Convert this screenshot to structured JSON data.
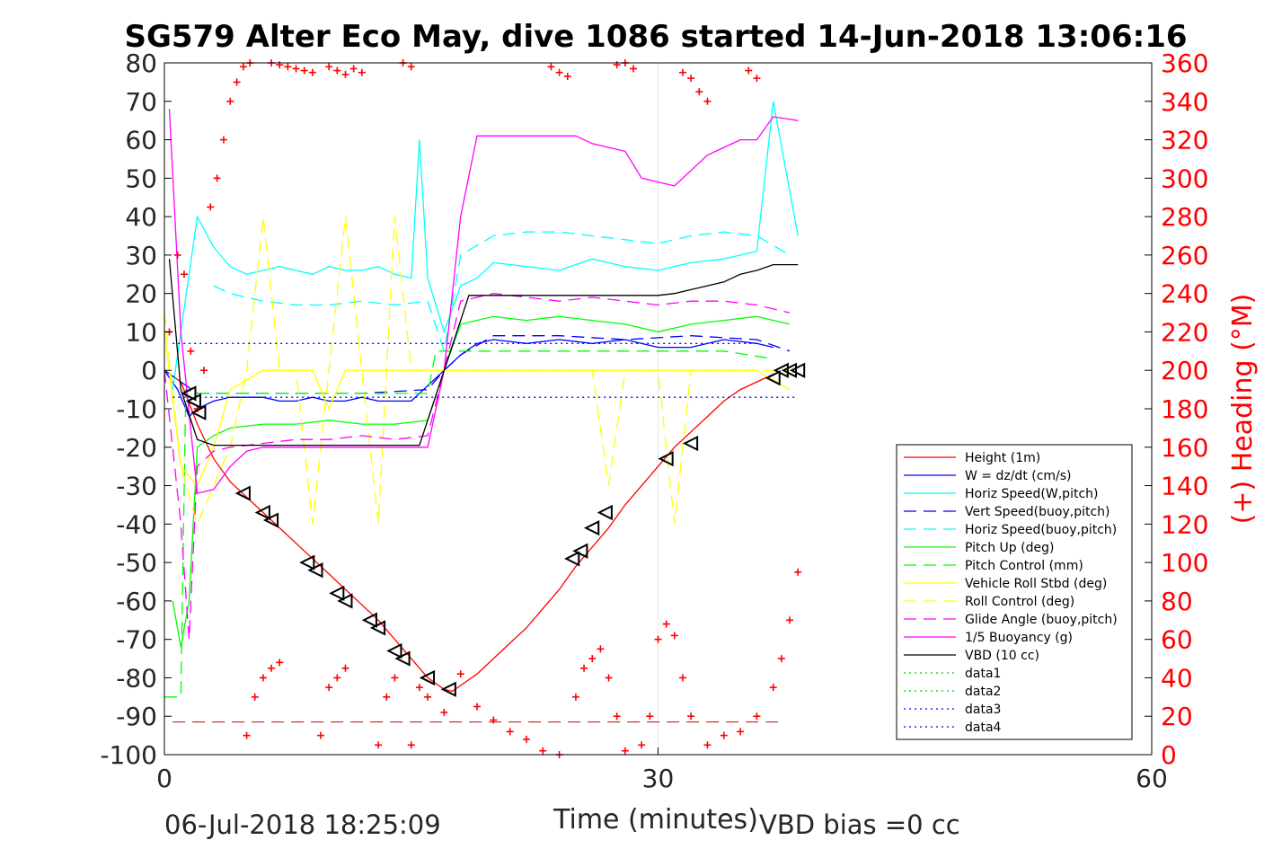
{
  "chart_data": {
    "type": "line",
    "title": "SG579 Alter Eco May, dive 1086 started 14-Jun-2018 13:06:16",
    "xlabel": "Time (minutes)",
    "ylabel_right": "(+) Heading (°M)",
    "footer_left": "06-Jul-2018 18:25:09",
    "footer_right": "VBD bias =0 cc",
    "xlim": [
      0,
      60
    ],
    "ylim": [
      -100,
      80
    ],
    "ylim_right": [
      0,
      360
    ],
    "x_ticks": [
      "0",
      "30",
      "60"
    ],
    "y_ticks": [
      "80",
      "70",
      "60",
      "50",
      "40",
      "30",
      "20",
      "10",
      "0",
      "-10",
      "-20",
      "-30",
      "-40",
      "-50",
      "-60",
      "-70",
      "-80",
      "-90",
      "-100"
    ],
    "y_ticks_right": [
      "360",
      "340",
      "320",
      "300",
      "280",
      "260",
      "240",
      "220",
      "200",
      "180",
      "160",
      "140",
      "120",
      "100",
      "80",
      "60",
      "40",
      "20",
      "0"
    ],
    "grid": "x-only",
    "legend_position": "lower-right",
    "series": [
      {
        "name": "Height (1m)",
        "color": "#ff0000",
        "style": "solid",
        "x": [
          0,
          1,
          2,
          3,
          4,
          5,
          6,
          7,
          8,
          9,
          10,
          11,
          12,
          13,
          14,
          15,
          16,
          17,
          17.5,
          18,
          19,
          20,
          21,
          22,
          23,
          24,
          25,
          26,
          27,
          28,
          29,
          30,
          31,
          32,
          33,
          34,
          35,
          36,
          37
        ],
        "y": [
          0,
          -3,
          -14,
          -23,
          -29,
          -33,
          -37,
          -41,
          -45,
          -49,
          -53,
          -57,
          -61,
          -65,
          -70,
          -75,
          -80,
          -83,
          -83.5,
          -82,
          -79,
          -75,
          -71,
          -67,
          -62,
          -57,
          -51,
          -46,
          -41,
          -35,
          -30,
          -25,
          -20,
          -16,
          -12,
          -8,
          -5,
          -3,
          -1
        ]
      },
      {
        "name": "W = dz/dt (cm/s)",
        "color": "#0000ff",
        "style": "solid",
        "x": [
          0,
          0.8,
          1.5,
          2,
          3,
          4,
          5,
          6,
          7,
          8,
          9,
          10,
          11,
          12,
          13,
          14,
          15,
          16,
          17,
          18,
          19,
          20,
          22,
          24,
          26,
          28,
          30,
          32,
          34,
          36,
          37
        ],
        "y": [
          0,
          -5,
          -12,
          -10,
          -8,
          -7,
          -7,
          -7,
          -8,
          -8,
          -7,
          -8,
          -8,
          -7,
          -8,
          -8,
          -8,
          -4,
          0,
          4,
          7,
          8,
          7,
          8,
          7,
          8,
          6,
          6,
          8,
          7,
          6
        ]
      },
      {
        "name": "Horiz Speed(W,pitch)",
        "color": "#00ffff",
        "style": "solid",
        "x": [
          0.5,
          1,
          2,
          3,
          4,
          5,
          6,
          7,
          8,
          9,
          10,
          11,
          12,
          13,
          14,
          15,
          15.5,
          16,
          17,
          18,
          19,
          20,
          22,
          24,
          26,
          28,
          30,
          32,
          34,
          36,
          37,
          38.5
        ],
        "y": [
          -5,
          10,
          40,
          32,
          27,
          25,
          26,
          27,
          26,
          25,
          27,
          26,
          26,
          27,
          25,
          24,
          60,
          24,
          10,
          22,
          24,
          28,
          27,
          26,
          29,
          27,
          26,
          28,
          29,
          31,
          70,
          35
        ]
      },
      {
        "name": "Vert Speed(buoy,pitch)",
        "color": "#0000ff",
        "style": "dashed",
        "x": [
          0,
          1,
          2,
          4,
          8,
          12,
          16,
          17,
          18,
          20,
          24,
          28,
          32,
          36,
          38
        ],
        "y": [
          0,
          -3,
          -6,
          -6,
          -6,
          -6,
          -5,
          0,
          4,
          9,
          9,
          8,
          9,
          8,
          5
        ]
      },
      {
        "name": "Horiz Speed(buoy,pitch)",
        "color": "#00ffff",
        "style": "dashed",
        "x": [
          3,
          4,
          6,
          8,
          10,
          12,
          14,
          16,
          17,
          18,
          20,
          22,
          24,
          26,
          28,
          30,
          32,
          34,
          36,
          38
        ],
        "y": [
          22,
          20,
          18,
          17,
          17,
          18,
          17,
          18,
          5,
          30,
          35,
          36,
          36,
          35,
          34,
          33,
          35,
          36,
          35,
          30
        ]
      },
      {
        "name": "Pitch Up (deg)",
        "color": "#00ff00",
        "style": "solid",
        "x": [
          0.5,
          1,
          1.5,
          2,
          3,
          4,
          6,
          8,
          10,
          12,
          14,
          16,
          17,
          18,
          20,
          22,
          24,
          26,
          28,
          30,
          32,
          34,
          36,
          38
        ],
        "y": [
          -60,
          -72,
          -60,
          -20,
          -17,
          -15,
          -14,
          -14,
          -13,
          -14,
          -14,
          -13,
          0,
          12,
          14,
          13,
          14,
          13,
          12,
          10,
          12,
          13,
          14,
          12
        ]
      },
      {
        "name": "Pitch Control (mm)",
        "color": "#00ff00",
        "style": "dashed",
        "x": [
          0,
          1,
          1.3,
          2,
          4,
          8,
          12,
          16,
          16.5,
          18,
          22,
          26,
          30,
          34,
          37
        ],
        "y": [
          -85,
          -85,
          -5,
          -6,
          -6,
          -6,
          -6,
          -6,
          5,
          5,
          5,
          5,
          5,
          5,
          3
        ]
      },
      {
        "name": "Vehicle Roll Stbd (deg)",
        "color": "#ffff00",
        "style": "solid",
        "x": [
          0,
          1,
          2,
          3,
          4,
          6,
          8,
          9,
          10,
          11,
          12,
          13,
          14,
          16,
          18,
          20,
          22,
          24,
          26,
          28,
          30,
          32,
          34,
          36,
          38
        ],
        "y": [
          10,
          -25,
          -30,
          -20,
          -5,
          0,
          0,
          0,
          -10,
          0,
          0,
          0,
          0,
          0,
          0,
          0,
          0,
          0,
          0,
          0,
          0,
          0,
          0,
          0,
          -5
        ]
      },
      {
        "name": "Roll Control (deg)",
        "color": "#ffff00",
        "style": "dashed",
        "x": [
          0,
          1,
          2,
          3,
          4,
          5,
          6,
          7,
          8,
          9,
          10,
          11,
          12,
          13,
          14,
          15,
          16,
          18,
          20,
          24,
          26,
          27,
          28,
          30,
          31,
          32,
          34,
          36,
          38
        ],
        "y": [
          15,
          -25,
          -40,
          -30,
          -20,
          0,
          40,
          0,
          0,
          -40,
          0,
          40,
          0,
          -40,
          40,
          0,
          0,
          0,
          0,
          0,
          0,
          -30,
          0,
          0,
          -40,
          0,
          0,
          0,
          0
        ]
      },
      {
        "name": "Glide Angle (buoy,pitch)",
        "color": "#ff00ff",
        "style": "dashed",
        "x": [
          0,
          1,
          1.5,
          2,
          3,
          4,
          6,
          8,
          10,
          12,
          14,
          16,
          17,
          18,
          20,
          22,
          24,
          26,
          28,
          30,
          32,
          34,
          36,
          38
        ],
        "y": [
          0,
          -40,
          -70,
          -25,
          -21,
          -20,
          -19,
          -18,
          -18,
          -17,
          -18,
          -17,
          0,
          18,
          20,
          19,
          18,
          19,
          18,
          17,
          18,
          18,
          17,
          15
        ]
      },
      {
        "name": "1/5 Buoyancy (g)",
        "color": "#ff00ff",
        "style": "solid",
        "x": [
          0.3,
          1,
          2,
          3,
          4,
          5,
          6,
          8,
          10,
          12,
          14,
          16,
          17,
          18,
          19,
          20,
          22,
          24,
          25,
          26,
          27,
          28,
          29,
          30,
          31,
          32,
          33,
          34,
          35,
          36,
          37,
          38.5
        ],
        "y": [
          68,
          10,
          -32,
          -31,
          -25,
          -21,
          -20,
          -20,
          -20,
          -20,
          -20,
          -20,
          0,
          40,
          61,
          61,
          61,
          61,
          61,
          59,
          58,
          57,
          50,
          49,
          48,
          52,
          56,
          58,
          60,
          60,
          66,
          65
        ]
      },
      {
        "name": "VBD (10 cc)",
        "color": "#000000",
        "style": "solid",
        "x": [
          0.3,
          1,
          2,
          3,
          4,
          6,
          8,
          10,
          12,
          14,
          15.5,
          17,
          18.5,
          20,
          22,
          24,
          26,
          28,
          30,
          31,
          32,
          33,
          34,
          35,
          36,
          37,
          38.5
        ],
        "y": [
          29,
          -5,
          -18,
          -19.5,
          -19.5,
          -19.5,
          -19.5,
          -19.5,
          -19.5,
          -19.5,
          -19.5,
          0,
          19.5,
          19.5,
          19.5,
          19.5,
          19.5,
          19.5,
          19.5,
          20,
          21,
          22,
          23,
          25,
          26,
          27.5,
          27.5
        ]
      },
      {
        "name": "data1",
        "color": "#00cc00",
        "style": "dotted",
        "x": [],
        "y": []
      },
      {
        "name": "data2",
        "color": "#00cc00",
        "style": "dotted",
        "x": [],
        "y": []
      },
      {
        "name": "data3",
        "color": "#0000ff",
        "style": "dotted",
        "x": [
          0.5,
          36
        ],
        "y": [
          7,
          7
        ]
      },
      {
        "name": "data4",
        "color": "#0000ff",
        "style": "dotted",
        "x": [
          0.5,
          38.5
        ],
        "y": [
          -7,
          -7
        ]
      }
    ],
    "heading_series": {
      "name": "Heading (°M)",
      "color": "#ff0000",
      "marker": "+",
      "x": [
        0.3,
        0.8,
        1.2,
        1.6,
        2.0,
        2.4,
        2.8,
        3.2,
        3.6,
        4.0,
        4.4,
        4.8,
        5.2,
        6.5,
        7.0,
        7.5,
        8.0,
        8.5,
        9.0,
        10.0,
        10.5,
        11.0,
        11.5,
        12.0,
        14.5,
        15.0,
        23.5,
        24.0,
        24.5,
        27.5,
        28.0,
        28.5,
        31.5,
        32.0,
        32.5,
        33.0,
        35.5,
        36.0,
        5.0,
        5.5,
        6.0,
        6.5,
        7.0,
        9.5,
        10.0,
        10.5,
        11.0,
        13.0,
        13.5,
        14.0,
        15.0,
        15.5,
        16.0,
        17.0,
        18.0,
        19.0,
        20.0,
        21.0,
        22.0,
        23.0,
        24.0,
        25.0,
        25.5,
        26.0,
        26.5,
        27.0,
        27.5,
        28.0,
        29.0,
        29.5,
        30.0,
        30.5,
        31.0,
        31.5,
        32.0,
        33.0,
        34.0,
        35.0,
        36.0,
        37.0,
        37.5,
        38.0,
        38.5
      ],
      "y": [
        220,
        260,
        250,
        210,
        180,
        200,
        285,
        300,
        320,
        340,
        350,
        358,
        360,
        360,
        359,
        358,
        357,
        356,
        355,
        358,
        356,
        354,
        357,
        355,
        360,
        358,
        358,
        355,
        353,
        359,
        360,
        357,
        355,
        352,
        345,
        340,
        356,
        352,
        10,
        30,
        40,
        45,
        48,
        10,
        35,
        40,
        45,
        5,
        30,
        40,
        5,
        35,
        30,
        22,
        42,
        25,
        18,
        12,
        8,
        2,
        0,
        30,
        45,
        50,
        55,
        40,
        20,
        2,
        5,
        20,
        60,
        68,
        62,
        40,
        20,
        5,
        10,
        12,
        20,
        35,
        50,
        70,
        95
      ]
    },
    "depth_markers": {
      "name": "Depth markers",
      "color": "#000000",
      "marker": "triangle",
      "x": [
        1.5,
        1.8,
        2.1,
        4.8,
        6.0,
        6.5,
        8.7,
        9.2,
        10.5,
        11.0,
        12.5,
        13.0,
        14.0,
        14.5,
        16.0,
        17.3,
        24.8,
        25.3,
        26.0,
        26.8,
        30.5,
        32.0,
        37.0,
        37.5,
        38.0,
        38.5
      ],
      "y": [
        -6,
        -8,
        -11,
        -32,
        -37,
        -39,
        -50,
        -52,
        -58,
        -60,
        -65,
        -67,
        -73,
        -75,
        -80,
        -83,
        -49,
        -47,
        -41,
        -37,
        -23,
        -19,
        -2,
        0,
        0,
        0
      ]
    },
    "reference_lines": [
      {
        "name": "vertical marker",
        "axis": "x",
        "value": 30,
        "color": "#e6e6e6"
      },
      {
        "name": "red dashed",
        "axis": "y",
        "value": -91.5,
        "x_range": [
          0.5,
          37.5
        ],
        "color": "#cc0000"
      }
    ]
  }
}
